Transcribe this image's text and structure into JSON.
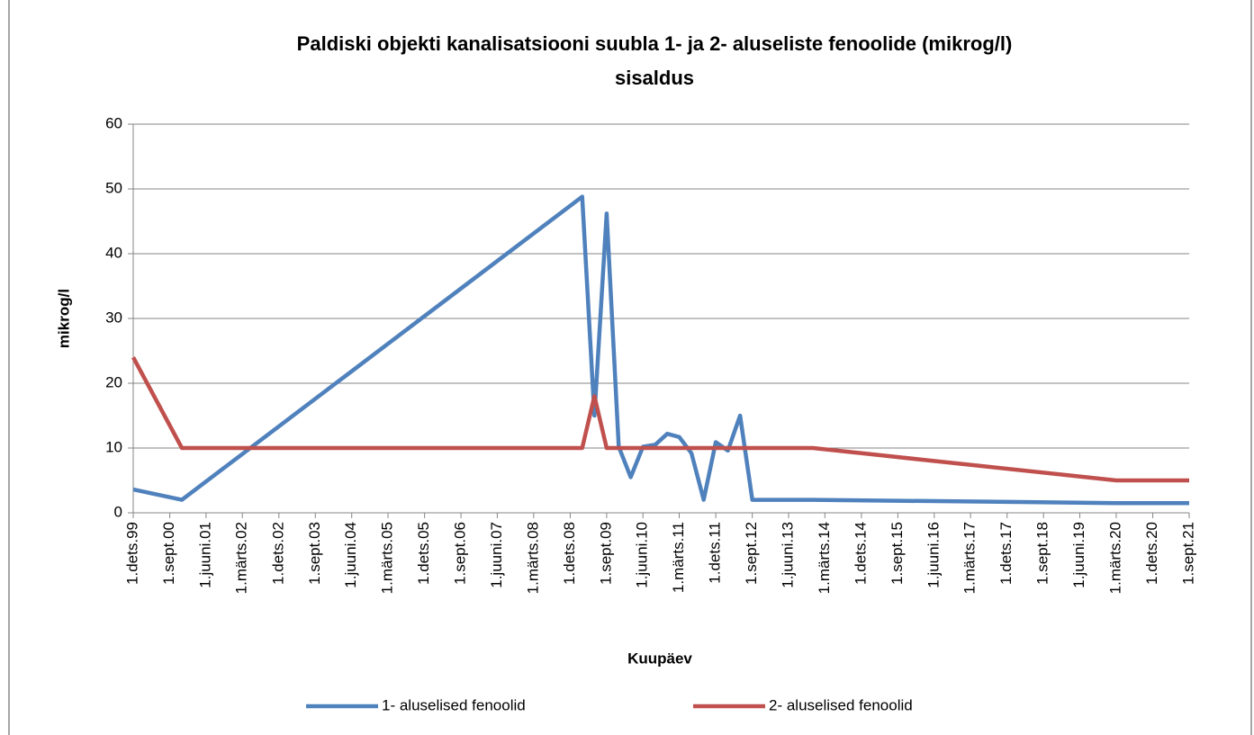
{
  "chart_data": {
    "type": "line",
    "title": "Paldiski objekti kanalisatsiooni suubla 1- ja 2- aluseliste fenoolide (mikrog/l)",
    "subtitle": "sisaldus",
    "x_label": "Kuupäev",
    "y_label": "mikrog/l",
    "x": [
      "1999-12-01",
      "2000-12-01",
      "2009-03-01",
      "2009-06-01",
      "2009-09-01",
      "2009-12-01",
      "2010-03-01",
      "2010-06-01",
      "2010-09-01",
      "2010-12-01",
      "2011-03-01",
      "2011-06-01",
      "2011-09-01",
      "2011-12-01",
      "2012-03-01",
      "2012-06-01",
      "2012-09-01",
      "2013-12-01",
      "2020-03-01",
      "2021-09-01"
    ],
    "series": [
      {
        "name": "1- aluselised fenoolid",
        "color": "#4f81bd",
        "values": [
          3.6,
          2,
          48.8,
          15,
          46.2,
          10.2,
          5.5,
          10.2,
          10.5,
          12.2,
          11.7,
          9.2,
          2,
          10.9,
          9.6,
          15,
          2,
          2,
          1.5,
          1.5
        ]
      },
      {
        "name": "2- aluselised fenoolid",
        "color": "#c0504d",
        "values": [
          24,
          10,
          10,
          18,
          10,
          10,
          10,
          10,
          10,
          10,
          10,
          10,
          10,
          10,
          10,
          10,
          10,
          10,
          5,
          5
        ]
      }
    ],
    "xlim": [
      "1999-12-01",
      "2021-09-01"
    ],
    "xticks": [
      {
        "value": "1999-12-01",
        "label": "1.dets.99"
      },
      {
        "value": "2000-09-01",
        "label": "1.sept.00"
      },
      {
        "value": "2001-06-01",
        "label": "1.juuni.01"
      },
      {
        "value": "2002-03-01",
        "label": "1.märts.02"
      },
      {
        "value": "2002-12-01",
        "label": "1.dets.02"
      },
      {
        "value": "2003-09-01",
        "label": "1.sept.03"
      },
      {
        "value": "2004-06-01",
        "label": "1.juuni.04"
      },
      {
        "value": "2005-03-01",
        "label": "1.märts.05"
      },
      {
        "value": "2005-12-01",
        "label": "1.dets.05"
      },
      {
        "value": "2006-09-01",
        "label": "1.sept.06"
      },
      {
        "value": "2007-06-01",
        "label": "1.juuni.07"
      },
      {
        "value": "2008-03-01",
        "label": "1.märts.08"
      },
      {
        "value": "2008-12-01",
        "label": "1.dets.08"
      },
      {
        "value": "2009-09-01",
        "label": "1.sept.09"
      },
      {
        "value": "2010-06-01",
        "label": "1.juuni.10"
      },
      {
        "value": "2011-03-01",
        "label": "1.märts.11"
      },
      {
        "value": "2011-12-01",
        "label": "1.dets.11"
      },
      {
        "value": "2012-09-01",
        "label": "1.sept.12"
      },
      {
        "value": "2013-06-01",
        "label": "1.juuni.13"
      },
      {
        "value": "2014-03-01",
        "label": "1.märts.14"
      },
      {
        "value": "2014-12-01",
        "label": "1.dets.14"
      },
      {
        "value": "2015-09-01",
        "label": "1.sept.15"
      },
      {
        "value": "2016-06-01",
        "label": "1.juuni.16"
      },
      {
        "value": "2017-03-01",
        "label": "1.märts.17"
      },
      {
        "value": "2017-12-01",
        "label": "1.dets.17"
      },
      {
        "value": "2018-09-01",
        "label": "1.sept.18"
      },
      {
        "value": "2019-06-01",
        "label": "1.juuni.19"
      },
      {
        "value": "2020-03-01",
        "label": "1.märts.20"
      },
      {
        "value": "2020-12-01",
        "label": "1.dets.20"
      },
      {
        "value": "2021-09-01",
        "label": "1.sept.21"
      }
    ],
    "ylim": [
      0,
      60
    ],
    "yticks": [
      0,
      10,
      20,
      30,
      40,
      50,
      60
    ],
    "grid": true,
    "legend": "bottom"
  }
}
